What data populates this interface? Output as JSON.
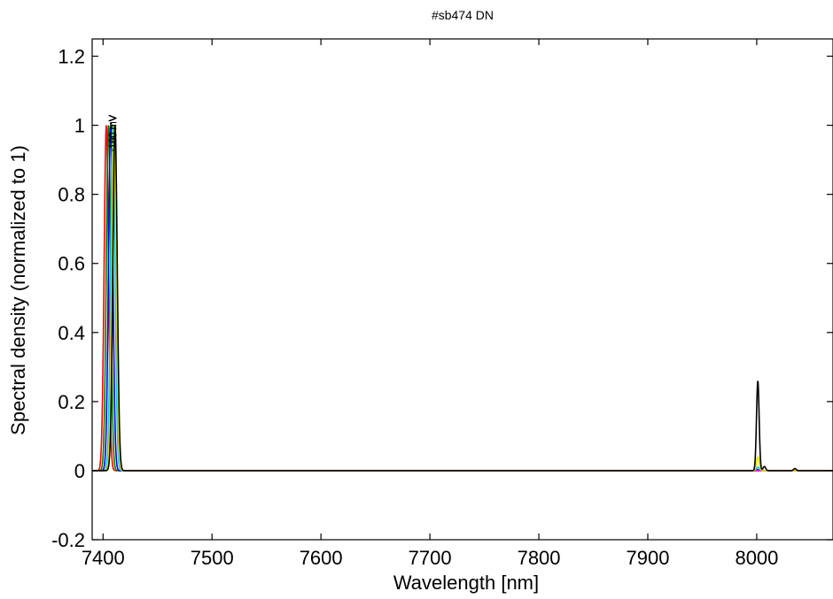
{
  "chart_data": {
    "type": "line",
    "title": "#sb474 DN",
    "xlabel": "Wavelength [nm]",
    "ylabel": "Spectral density (normalized to 1)",
    "xlim": [
      7390,
      8070
    ],
    "ylim": [
      -0.2,
      1.25
    ],
    "x_ticks": [
      7400,
      7500,
      7600,
      7700,
      7800,
      7900,
      8000
    ],
    "y_ticks": [
      -0.2,
      0,
      0.2,
      0.4,
      0.6,
      0.8,
      1,
      1.2
    ],
    "x_tick_labels": [
      "7400",
      "7500",
      "7600",
      "7700",
      "7800",
      "7900",
      "8000"
    ],
    "y_tick_labels": [
      "-0.2",
      "0",
      "0.2",
      "0.4",
      "0.6",
      "0.8",
      "1",
      "1.2"
    ],
    "grid": false,
    "peak_labels": [
      "-100 mV",
      "0 mV",
      "100 mV",
      "150 mV"
    ],
    "series": [
      {
        "color": "#ff0000",
        "peak_x": 7403,
        "peak_y": 1.0,
        "width": 2.0,
        "secondary": []
      },
      {
        "color": "#008000",
        "peak_x": 7405,
        "peak_y": 1.0,
        "width": 2.0,
        "secondary": []
      },
      {
        "color": "#0000ff",
        "peak_x": 7407,
        "peak_y": 1.0,
        "width": 2.0,
        "secondary": [
          {
            "x": 8001,
            "y": 0.003
          }
        ]
      },
      {
        "color": "#00c8c8",
        "peak_x": 7409,
        "peak_y": 1.0,
        "width": 2.0,
        "secondary": [
          {
            "x": 8001,
            "y": 0.01
          }
        ]
      },
      {
        "color": "#ff00ff",
        "peak_x": 7410,
        "peak_y": 1.0,
        "width": 2.0,
        "secondary": []
      },
      {
        "color": "#e6e600",
        "peak_x": 7410,
        "peak_y": 1.0,
        "width": 2.0,
        "secondary": [
          {
            "x": 8001,
            "y": 0.04
          }
        ]
      },
      {
        "color": "#000000",
        "peak_x": 7411,
        "peak_y": 1.0,
        "width": 2.0,
        "secondary": [
          {
            "x": 8001,
            "y": 0.26
          },
          {
            "x": 8007,
            "y": 0.012
          },
          {
            "x": 8035,
            "y": 0.006
          }
        ]
      }
    ]
  }
}
